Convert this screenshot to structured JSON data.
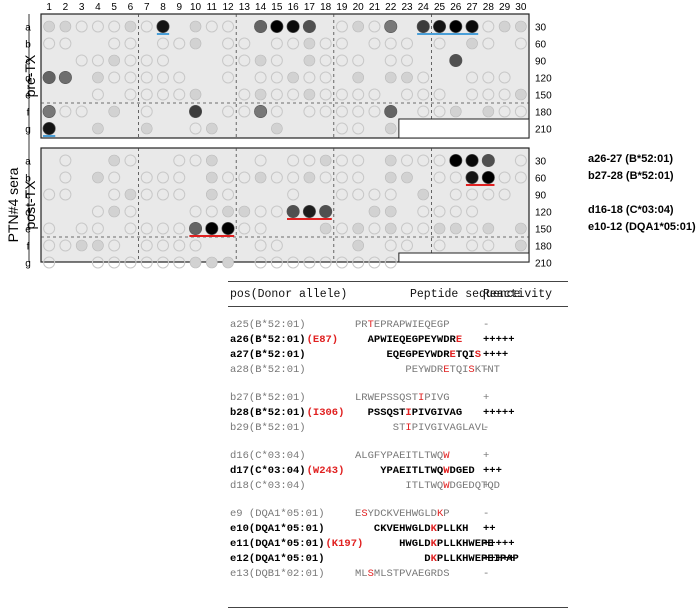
{
  "figure": {
    "side_label": "PTN#4 sera",
    "panels": [
      {
        "id": "pre",
        "label": "pre-TX",
        "rows": [
          "a",
          "b",
          "c",
          "d",
          "e",
          "f",
          "g"
        ],
        "right_labels": [
          "30",
          "60",
          "90",
          "120",
          "150",
          "180",
          "210"
        ]
      },
      {
        "id": "post",
        "label": "post-TX",
        "rows": [
          "a",
          "b",
          "c",
          "d",
          "e",
          "f",
          "g"
        ],
        "right_labels": [
          "30",
          "60",
          "90",
          "120",
          "150",
          "180",
          "210"
        ]
      }
    ],
    "columns": [
      "1",
      "2",
      "3",
      "4",
      "5",
      "6",
      "7",
      "8",
      "9",
      "10",
      "11",
      "12",
      "13",
      "14",
      "15",
      "16",
      "17",
      "18",
      "19",
      "20",
      "21",
      "22",
      "23",
      "24",
      "25",
      "26",
      "27",
      "28",
      "29",
      "30"
    ],
    "annotations": [
      {
        "text": "a26-27 (B*52:01)"
      },
      {
        "text": "b27-28 (B*52:01)"
      },
      {
        "text": "d16-18 (C*03:04)"
      },
      {
        "text": "e10-12 (DQA1*05:01)"
      }
    ],
    "colors": {
      "blue_marker": "#4a9fd8",
      "red_marker": "#e02020",
      "highlight": "#e02020"
    }
  },
  "table": {
    "headers": {
      "pos": "pos(Donor allele)",
      "peptide": "Peptide sequence",
      "reactivity": "Reactivity"
    },
    "groups": [
      {
        "rows": [
          {
            "pos": "a25(B*52:01)",
            "mut": "",
            "seq": [
              [
                "PR",
                0
              ],
              [
                "T",
                1
              ],
              [
                "EPRAPWIEQEGP",
                0
              ]
            ],
            "indent": 0,
            "react": "-",
            "bold": false
          },
          {
            "pos": "a26(B*52:01)",
            "mut": "(E87)",
            "seq": [
              [
                "APWIEQEGPEYWDR",
                0
              ],
              [
                "E",
                1
              ]
            ],
            "indent": 2,
            "react": "+++++",
            "bold": true
          },
          {
            "pos": "a27(B*52:01)",
            "mut": "",
            "seq": [
              [
                "EQEGPEYWDR",
                0
              ],
              [
                "E",
                1
              ],
              [
                "TQI",
                0
              ],
              [
                "S",
                1
              ]
            ],
            "indent": 5,
            "react": "++++",
            "bold": true
          },
          {
            "pos": "a28(B*52:01)",
            "mut": "",
            "seq": [
              [
                "PEYWDR",
                0
              ],
              [
                "E",
                1
              ],
              [
                "TQI",
                0
              ],
              [
                "S",
                1
              ],
              [
                "KTNT",
                0
              ]
            ],
            "indent": 8,
            "react": "-",
            "bold": false
          }
        ]
      },
      {
        "rows": [
          {
            "pos": "b27(B*52:01)",
            "mut": "",
            "seq": [
              [
                "LRWEPSSQST",
                0
              ],
              [
                "I",
                1
              ],
              [
                "PIVG",
                0
              ]
            ],
            "indent": 0,
            "react": "+",
            "bold": false
          },
          {
            "pos": "b28(B*52:01)",
            "mut": "(I306)",
            "seq": [
              [
                "PSSQST",
                0
              ],
              [
                "I",
                1
              ],
              [
                "PIVGIVAG",
                0
              ]
            ],
            "indent": 2,
            "react": "+++++",
            "bold": true
          },
          {
            "pos": "b29(B*52:01)",
            "mut": "",
            "seq": [
              [
                "ST",
                0
              ],
              [
                "I",
                1
              ],
              [
                "PIVGIVAGLAVL",
                0
              ]
            ],
            "indent": 6,
            "react": "-",
            "bold": false
          }
        ]
      },
      {
        "rows": [
          {
            "pos": "d16(C*03:04)",
            "mut": "",
            "seq": [
              [
                "ALGFYPAEITLTWQ",
                0
              ],
              [
                "W",
                1
              ]
            ],
            "indent": 0,
            "react": "+",
            "bold": false
          },
          {
            "pos": "d17(C*03:04)",
            "mut": "(W243)",
            "seq": [
              [
                "YPAEITLTWQ",
                0
              ],
              [
                "W",
                1
              ],
              [
                "DGED",
                0
              ]
            ],
            "indent": 4,
            "react": "+++",
            "bold": true
          },
          {
            "pos": "d18(C*03:04)",
            "mut": "",
            "seq": [
              [
                "ITLTWQ",
                0
              ],
              [
                "W",
                1
              ],
              [
                "DGEDQTQD",
                0
              ]
            ],
            "indent": 8,
            "react": "+",
            "bold": false
          }
        ]
      },
      {
        "rows": [
          {
            "pos": "e9 (DQA1*05:01)",
            "mut": "",
            "seq": [
              [
                "E",
                0
              ],
              [
                "S",
                1
              ],
              [
                "YDCKVEHWGLD",
                0
              ],
              [
                "K",
                1
              ],
              [
                "P",
                0
              ]
            ],
            "indent": 0,
            "react": "-",
            "bold": false
          },
          {
            "pos": "e10(DQA1*05:01)",
            "mut": "",
            "seq": [
              [
                "CKVEHWGLD",
                0
              ],
              [
                "K",
                1
              ],
              [
                "PLLKH",
                0
              ]
            ],
            "indent": 3,
            "react": "++",
            "bold": true
          },
          {
            "pos": "e11(DQA1*05:01)",
            "mut": "(K197)",
            "seq": [
              [
                "HWGLD",
                0
              ],
              [
                "K",
                1
              ],
              [
                "PLLKHWEPE",
                0
              ]
            ],
            "indent": 7,
            "react": "+++++",
            "bold": true
          },
          {
            "pos": "e12(DQA1*05:01)",
            "mut": "",
            "seq": [
              [
                "D",
                0
              ],
              [
                "K",
                1
              ],
              [
                "PLLKHWEPEIPAP",
                0
              ]
            ],
            "indent": 11,
            "react": "+++++",
            "bold": true
          },
          {
            "pos": "e13(DQB1*02:01)",
            "mut": "",
            "seq": [
              [
                "ML",
                0
              ],
              [
                "S",
                1
              ],
              [
                "MLSTPVAEGRDS",
                0
              ]
            ],
            "indent": 0,
            "react": "-",
            "bold": false
          }
        ]
      }
    ]
  }
}
